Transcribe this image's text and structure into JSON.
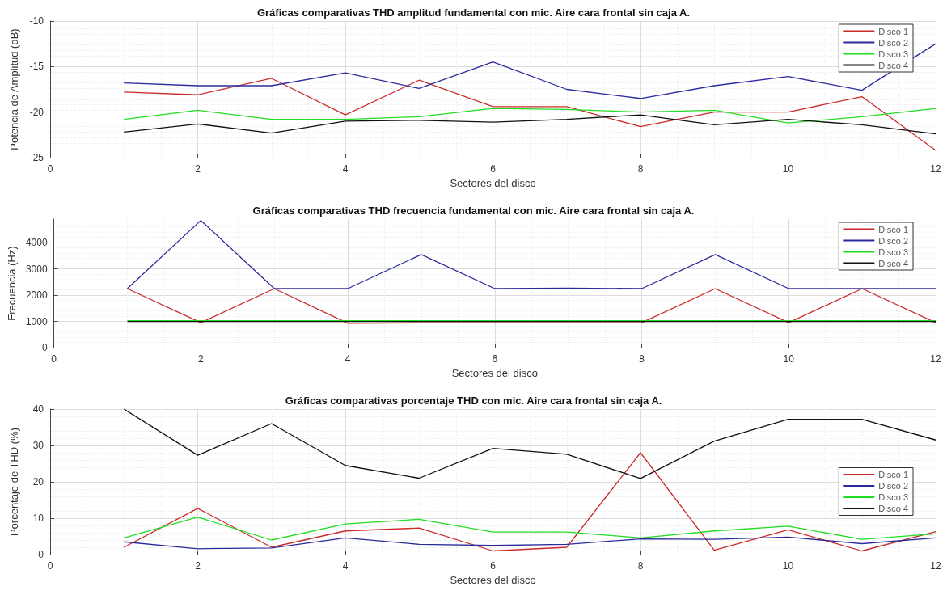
{
  "chart_data": [
    {
      "type": "line",
      "title": "Gráficas comparativas THD amplitud fundamental con mic. Aire cara frontal sin caja A.",
      "xlabel": "Sectores del disco",
      "ylabel": "Potencia de Amplitud (dB)",
      "x": [
        1,
        2,
        3,
        4,
        5,
        6,
        7,
        8,
        9,
        10,
        11,
        12
      ],
      "xlim": [
        0,
        12
      ],
      "xticks": [
        0,
        2,
        4,
        6,
        8,
        10,
        12
      ],
      "ylim": [
        -25,
        -10
      ],
      "yticks": [
        -25,
        -20,
        -15,
        -10
      ],
      "grid": true,
      "legend": "top right",
      "marker": "none",
      "line_style": "solid",
      "series": [
        {
          "name": "Disco 1",
          "color": "#cc2b2b",
          "values": [
            -17.8,
            -18.1,
            -16.3,
            -20.3,
            -16.5,
            -19.4,
            -19.4,
            -21.6,
            -20,
            -20,
            -18.3,
            -24.2
          ]
        },
        {
          "name": "Disco 2",
          "color": "#2b2b9c",
          "values": [
            -16.8,
            -17.1,
            -17.1,
            -15.7,
            -17.4,
            -14.5,
            -17.5,
            -18.5,
            -17.1,
            -16.1,
            -17.6,
            -12.5
          ]
        },
        {
          "name": "Disco 3",
          "color": "#22dd22",
          "values": [
            -20.8,
            -19.8,
            -20.8,
            -20.8,
            -20.5,
            -19.6,
            -19.7,
            -20,
            -19.8,
            -21.2,
            -20.5,
            -19.6
          ]
        },
        {
          "name": "Disco 4",
          "color": "#111111",
          "values": [
            -22.2,
            -21.3,
            -22.3,
            -21,
            -20.9,
            -21.1,
            -20.8,
            -20.3,
            -21.4,
            -20.8,
            -21.4,
            -22.4
          ]
        }
      ]
    },
    {
      "type": "line",
      "title": "Gráficas comparativas THD frecuencia fundamental con mic. Aire cara frontal sin caja A.",
      "xlabel": "Sectores del disco",
      "ylabel": "Frecuencia (Hz)",
      "x": [
        1,
        2,
        3,
        4,
        5,
        6,
        7,
        8,
        9,
        10,
        11,
        12
      ],
      "xlim": [
        0,
        12
      ],
      "xticks": [
        0,
        2,
        4,
        6,
        8,
        10,
        12
      ],
      "ylim": [
        0,
        4900
      ],
      "yticks": [
        0,
        1000,
        2000,
        3000,
        4000
      ],
      "grid": true,
      "legend": "top right",
      "marker": "none",
      "line_style": "solid",
      "series": [
        {
          "name": "Disco 1",
          "color": "#cc2b2b",
          "values": [
            2250,
            950,
            2250,
            930,
            950,
            950,
            950,
            950,
            2250,
            950,
            2250,
            950
          ]
        },
        {
          "name": "Disco 2",
          "color": "#2b2b9c",
          "values": [
            2250,
            4850,
            2250,
            2250,
            3550,
            2250,
            2270,
            2250,
            3550,
            2250,
            2250,
            2250
          ]
        },
        {
          "name": "Disco 3",
          "color": "#22dd22",
          "values": [
            1030,
            1030,
            1030,
            1030,
            1030,
            1030,
            1030,
            1030,
            1030,
            1030,
            1030,
            1030
          ]
        },
        {
          "name": "Disco 4",
          "color": "#111111",
          "values": [
            1000,
            1000,
            1000,
            1000,
            1000,
            1000,
            1000,
            1000,
            1000,
            1000,
            1000,
            1000
          ]
        }
      ]
    },
    {
      "type": "line",
      "title": "Gráficas comparativas porcentaje THD con mic. Aire cara frontal sin caja A.",
      "xlabel": "Sectores del disco",
      "ylabel": "Porcentaje de THD (%)",
      "x": [
        1,
        2,
        3,
        4,
        5,
        6,
        7,
        8,
        9,
        10,
        11,
        12
      ],
      "xlim": [
        0,
        12
      ],
      "xticks": [
        0,
        2,
        4,
        6,
        8,
        10,
        12
      ],
      "ylim": [
        0,
        40
      ],
      "yticks": [
        0,
        10,
        20,
        30,
        40
      ],
      "grid": true,
      "legend": "right",
      "marker": "none",
      "line_style": "solid",
      "series": [
        {
          "name": "Disco 1",
          "color": "#cc2b2b",
          "values": [
            2,
            12.7,
            2,
            6.5,
            7.3,
            1,
            2,
            28,
            1.2,
            6.8,
            1,
            6.3
          ]
        },
        {
          "name": "Disco 2",
          "color": "#2b2b9c",
          "values": [
            3.5,
            1.6,
            1.8,
            4.6,
            2.8,
            2.5,
            2.8,
            4.3,
            4.2,
            4.8,
            3,
            4.6
          ]
        },
        {
          "name": "Disco 3",
          "color": "#22dd22",
          "values": [
            4.6,
            10.3,
            4,
            8.4,
            9.7,
            6.2,
            6.2,
            4.6,
            6.5,
            7.8,
            4.2,
            5.7
          ]
        },
        {
          "name": "Disco 4",
          "color": "#111111",
          "values": [
            40,
            27.3,
            36,
            24.5,
            21,
            29.2,
            27.6,
            20.9,
            31.2,
            37.2,
            37.2,
            31.5
          ]
        }
      ]
    }
  ]
}
